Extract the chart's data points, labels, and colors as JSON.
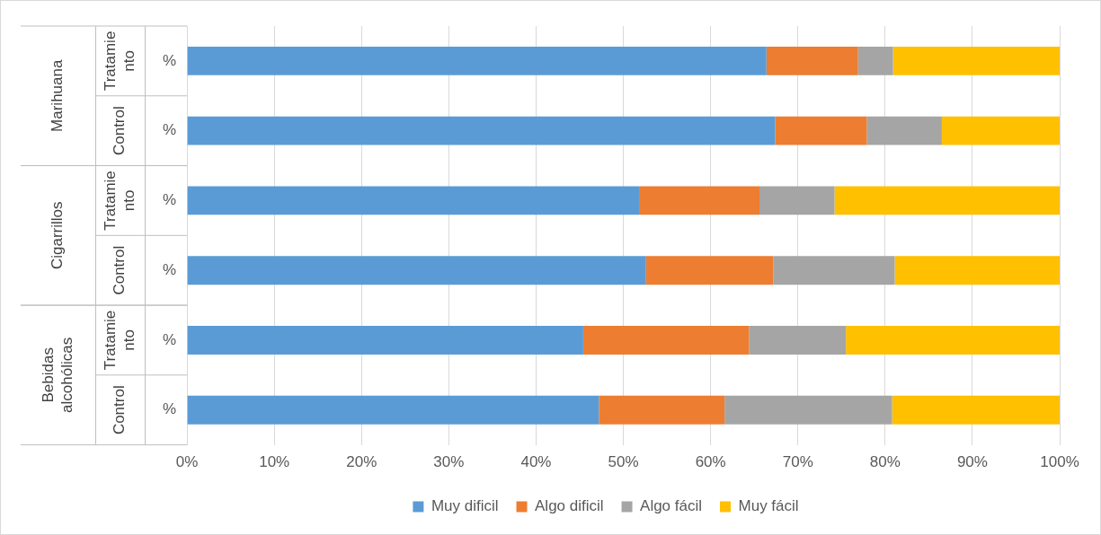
{
  "chart_data": {
    "type": "bar",
    "orientation": "horizontal",
    "stacked": true,
    "categories": [
      "%",
      "%",
      "%",
      "%",
      "%",
      "%"
    ],
    "series": [
      {
        "name": "Muy dificil",
        "color": "#5b9bd5",
        "values": [
          66.4,
          67.4,
          51.8,
          52.6,
          45.4,
          47.2
        ]
      },
      {
        "name": "Algo dificil",
        "color": "#ed7d31",
        "values": [
          10.5,
          10.5,
          13.8,
          14.6,
          19.0,
          14.4
        ]
      },
      {
        "name": "Algo fácil",
        "color": "#a5a5a5",
        "values": [
          4.0,
          8.6,
          8.6,
          13.9,
          11.1,
          19.2
        ]
      },
      {
        "name": "Muy fácil",
        "color": "#ffc000",
        "values": [
          19.1,
          13.5,
          25.8,
          18.9,
          24.5,
          19.2
        ]
      }
    ],
    "xlim": [
      0,
      100
    ],
    "xticks": [
      {
        "value": 0,
        "label": "0%"
      },
      {
        "value": 10,
        "label": "10%"
      },
      {
        "value": 20,
        "label": "20%"
      },
      {
        "value": 30,
        "label": "30%"
      },
      {
        "value": 40,
        "label": "40%"
      },
      {
        "value": 50,
        "label": "50%"
      },
      {
        "value": 60,
        "label": "60%"
      },
      {
        "value": 70,
        "label": "70%"
      },
      {
        "value": 80,
        "label": "80%"
      },
      {
        "value": 90,
        "label": "90%"
      },
      {
        "value": 100,
        "label": "100%"
      }
    ],
    "grid": "x",
    "legend": "bottom",
    "annotations": [
      "Marihuana",
      "Tratamiento",
      "Control",
      "Cigarrillos",
      "Tratamiento",
      "Control",
      "Bebidas alcohólicas",
      "Tratamiento",
      "Control"
    ]
  }
}
